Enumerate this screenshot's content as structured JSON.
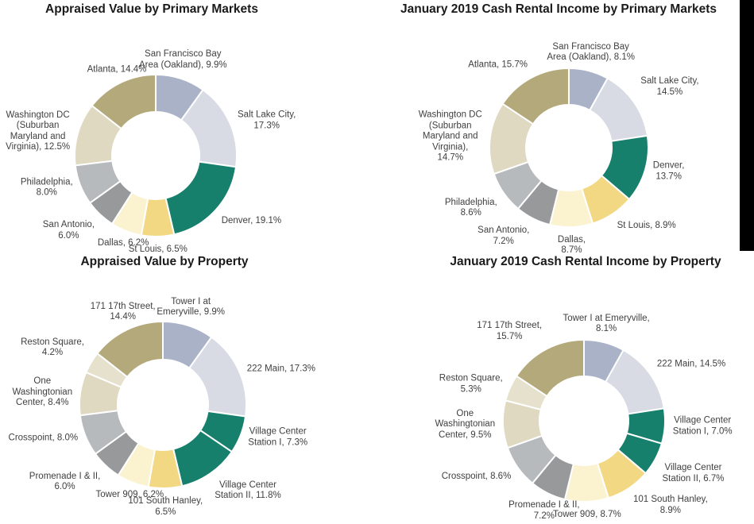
{
  "page": {
    "background": "#ffffff",
    "label_color": "#404040",
    "title_color": "#1a1a1a",
    "slice_separator_color": "#ffffff"
  },
  "decor": {
    "right_black_bar": {
      "color": "#000000"
    }
  },
  "chart_data": [
    {
      "type": "pie",
      "subtype": "donut",
      "title": "Appraised Value by Primary Markets",
      "unit": "percent",
      "label_position": "outside",
      "legend": "none",
      "slices": [
        {
          "label": "San Francisco Bay Area (Oakland)",
          "value": 9.9,
          "pct": "9.9%",
          "color": "#A9B2C6",
          "lines": [
            "San Francisco Bay",
            "Area (Oakland), 9.9%"
          ]
        },
        {
          "label": "Salt Lake City",
          "value": 17.3,
          "pct": "17.3%",
          "color": "#D8DBE4",
          "lines": [
            "Salt Lake City,",
            "17.3%"
          ]
        },
        {
          "label": "Denver",
          "value": 19.1,
          "pct": "19.1%",
          "color": "#17806D",
          "lines": [
            "Denver, 19.1%"
          ]
        },
        {
          "label": "St Louis",
          "value": 6.5,
          "pct": "6.5%",
          "color": "#F3D884",
          "lines": [
            "St Louis, 6.5%"
          ]
        },
        {
          "label": "Dallas",
          "value": 6.2,
          "pct": "6.2%",
          "color": "#FBF3D0",
          "lines": [
            "Dallas, 6.2%"
          ]
        },
        {
          "label": "San Antonio",
          "value": 6.0,
          "pct": "6.0%",
          "color": "#97999B",
          "lines": [
            "San Antonio,",
            "6.0%"
          ]
        },
        {
          "label": "Philadelphia",
          "value": 8.0,
          "pct": "8.0%",
          "color": "#B7BABD",
          "lines": [
            "Philadelphia,",
            "8.0%"
          ]
        },
        {
          "label": "Washington DC (Suburban Maryland and Virginia)",
          "value": 12.5,
          "pct": "12.5%",
          "color": "#DFD9C1",
          "lines": [
            "Washington DC",
            "(Suburban",
            "Maryland and",
            "Virginia), 12.5%"
          ]
        },
        {
          "label": "Atlanta",
          "value": 14.4,
          "pct": "14.4%",
          "color": "#B3A97A",
          "lines": [
            "Atlanta, 14.4%"
          ]
        }
      ]
    },
    {
      "type": "pie",
      "subtype": "donut",
      "title": "January 2019 Cash Rental Income by Primary Markets",
      "unit": "percent",
      "label_position": "outside",
      "legend": "none",
      "slices": [
        {
          "label": "San Francisco Bay Area (Oakland)",
          "value": 8.1,
          "pct": "8.1%",
          "color": "#A9B2C6",
          "lines": [
            "San Francisco Bay",
            "Area (Oakland), 8.1%"
          ]
        },
        {
          "label": "Salt Lake City",
          "value": 14.5,
          "pct": "14.5%",
          "color": "#D8DBE4",
          "lines": [
            "Salt Lake City,",
            "14.5%"
          ]
        },
        {
          "label": "Denver",
          "value": 13.7,
          "pct": "13.7%",
          "color": "#17806D",
          "lines": [
            "Denver,",
            "13.7%"
          ]
        },
        {
          "label": "St Louis",
          "value": 8.9,
          "pct": "8.9%",
          "color": "#F3D884",
          "lines": [
            "St Louis, 8.9%"
          ]
        },
        {
          "label": "Dallas",
          "value": 8.7,
          "pct": "8.7%",
          "color": "#FBF3D0",
          "lines": [
            "Dallas,",
            "8.7%"
          ]
        },
        {
          "label": "San Antonio",
          "value": 7.2,
          "pct": "7.2%",
          "color": "#97999B",
          "lines": [
            "San Antonio,",
            "7.2%"
          ]
        },
        {
          "label": "Philadelphia",
          "value": 8.6,
          "pct": "8.6%",
          "color": "#B7BABD",
          "lines": [
            "Philadelphia,",
            "8.6%"
          ]
        },
        {
          "label": "Washington DC (Suburban Maryland and Virginia)",
          "value": 14.7,
          "pct": "14.7%",
          "color": "#DFD9C1",
          "lines": [
            "Washington DC",
            "(Suburban",
            "Maryland and",
            "Virginia),",
            "14.7%"
          ]
        },
        {
          "label": "Atlanta",
          "value": 15.7,
          "pct": "15.7%",
          "color": "#B3A97A",
          "lines": [
            "Atlanta, 15.7%"
          ]
        }
      ]
    },
    {
      "type": "pie",
      "subtype": "donut",
      "title": "Appraised Value by Property",
      "unit": "percent",
      "label_position": "outside",
      "legend": "none",
      "slices": [
        {
          "label": "Tower I at Emeryville",
          "value": 9.9,
          "pct": "9.9%",
          "color": "#A9B2C6",
          "lines": [
            "Tower I at",
            "Emeryville, 9.9%"
          ]
        },
        {
          "label": "222 Main",
          "value": 17.3,
          "pct": "17.3%",
          "color": "#D8DBE4",
          "lines": [
            "222 Main, 17.3%"
          ]
        },
        {
          "label": "Village Center Station I",
          "value": 7.3,
          "pct": "7.3%",
          "color": "#17806D",
          "lines": [
            "Village Center",
            "Station I, 7.3%"
          ]
        },
        {
          "label": "Village Center Station II",
          "value": 11.8,
          "pct": "11.8%",
          "color": "#17806D",
          "lines": [
            "Village Center",
            "Station II, 11.8%"
          ]
        },
        {
          "label": "101 South Hanley",
          "value": 6.5,
          "pct": "6.5%",
          "color": "#F3D884",
          "lines": [
            "101 South Hanley,",
            "6.5%"
          ]
        },
        {
          "label": "Tower 909",
          "value": 6.2,
          "pct": "6.2%",
          "color": "#FBF3D0",
          "lines": [
            "Tower 909, 6.2%"
          ]
        },
        {
          "label": "Promenade I & II",
          "value": 6.0,
          "pct": "6.0%",
          "color": "#97999B",
          "lines": [
            "Promenade I & II,",
            "6.0%"
          ]
        },
        {
          "label": "Crosspoint",
          "value": 8.0,
          "pct": "8.0%",
          "color": "#B7BABD",
          "lines": [
            "Crosspoint, 8.0%"
          ]
        },
        {
          "label": "One Washingtonian Center",
          "value": 8.4,
          "pct": "8.4%",
          "color": "#DFD9C1",
          "lines": [
            "One",
            "Washingtonian",
            "Center, 8.4%"
          ]
        },
        {
          "label": "Reston Square",
          "value": 4.2,
          "pct": "4.2%",
          "color": "#E6E1CD",
          "lines": [
            "Reston Square,",
            "4.2%"
          ]
        },
        {
          "label": "171 17th Street",
          "value": 14.4,
          "pct": "14.4%",
          "color": "#B3A97A",
          "lines": [
            "171 17th Street,",
            "14.4%"
          ]
        }
      ]
    },
    {
      "type": "pie",
      "subtype": "donut",
      "title": "January 2019 Cash Rental Income by Property",
      "unit": "percent",
      "label_position": "outside",
      "legend": "none",
      "slices": [
        {
          "label": "Tower I at Emeryville",
          "value": 8.1,
          "pct": "8.1%",
          "color": "#A9B2C6",
          "lines": [
            "Tower I at Emeryville,",
            "8.1%"
          ]
        },
        {
          "label": "222 Main",
          "value": 14.5,
          "pct": "14.5%",
          "color": "#D8DBE4",
          "lines": [
            "222 Main, 14.5%"
          ]
        },
        {
          "label": "Village Center Station I",
          "value": 7.0,
          "pct": "7.0%",
          "color": "#17806D",
          "lines": [
            "Village Center",
            "Station I, 7.0%"
          ]
        },
        {
          "label": "Village Center Station II",
          "value": 6.7,
          "pct": "6.7%",
          "color": "#17806D",
          "lines": [
            "Village Center",
            "Station II, 6.7%"
          ]
        },
        {
          "label": "101 South Hanley",
          "value": 8.9,
          "pct": "8.9%",
          "color": "#F3D884",
          "lines": [
            "101 South Hanley,",
            "8.9%"
          ]
        },
        {
          "label": "Tower 909",
          "value": 8.7,
          "pct": "8.7%",
          "color": "#FBF3D0",
          "lines": [
            "Tower 909, 8.7%"
          ]
        },
        {
          "label": "Promenade I & II",
          "value": 7.2,
          "pct": "7.2%",
          "color": "#97999B",
          "lines": [
            "Promenade I & II,",
            "7.2%"
          ]
        },
        {
          "label": "Crosspoint",
          "value": 8.6,
          "pct": "8.6%",
          "color": "#B7BABD",
          "lines": [
            "Crosspoint, 8.6%"
          ]
        },
        {
          "label": "One Washingtonian Center",
          "value": 9.5,
          "pct": "9.5%",
          "color": "#DFD9C1",
          "lines": [
            "One",
            "Washingtonian",
            "Center, 9.5%"
          ]
        },
        {
          "label": "Reston Square",
          "value": 5.3,
          "pct": "5.3%",
          "color": "#E6E1CD",
          "lines": [
            "Reston Square,",
            "5.3%"
          ]
        },
        {
          "label": "171 17th Street",
          "value": 15.7,
          "pct": "15.7%",
          "color": "#B3A97A",
          "lines": [
            "171 17th Street,",
            "15.7%"
          ]
        }
      ]
    }
  ]
}
